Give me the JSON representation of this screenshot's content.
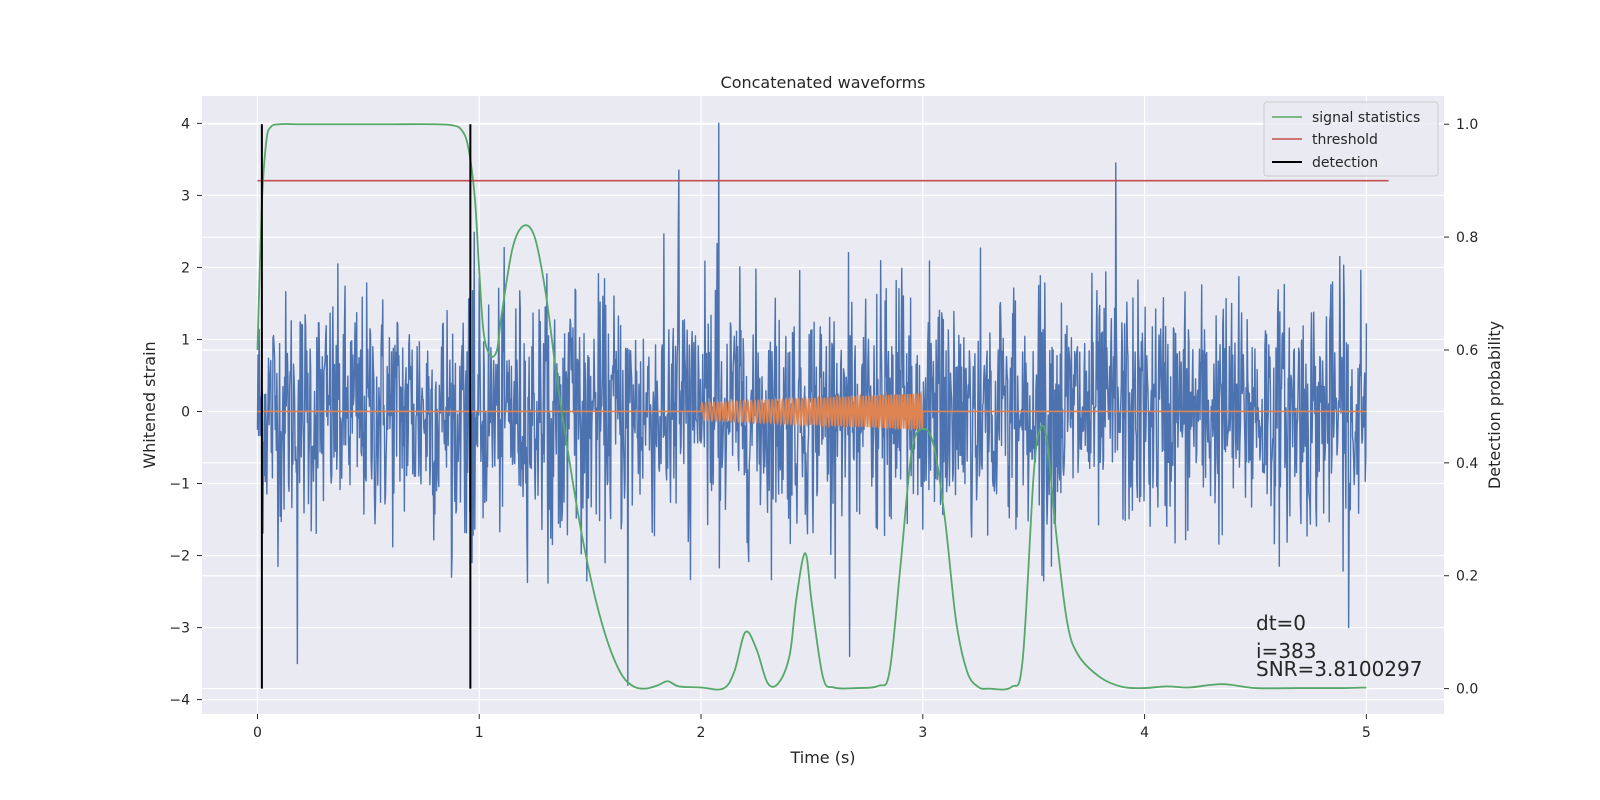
{
  "chart_data": {
    "type": "line",
    "title": "Concatenated waveforms",
    "xlabel": "Time (s)",
    "ylabel": "Whitened strain",
    "y2label": "Detection probability",
    "xlim": [
      -0.25,
      5.35
    ],
    "ylim": [
      -4.2,
      4.38
    ],
    "y2lim": [
      -0.045,
      1.05
    ],
    "xticks": [
      0,
      1,
      2,
      3,
      4,
      5
    ],
    "yticks": [
      -4,
      -3,
      -2,
      -1,
      0,
      1,
      2,
      3,
      4
    ],
    "y2ticks": [
      0.0,
      0.2,
      0.4,
      0.6,
      0.8,
      1.0
    ],
    "xtick_labels": [
      "0",
      "1",
      "2",
      "3",
      "4",
      "5"
    ],
    "ytick_labels": [
      "−4",
      "−3",
      "−2",
      "−1",
      "0",
      "1",
      "2",
      "3",
      "4"
    ],
    "y2tick_labels": [
      "0.0",
      "0.2",
      "0.4",
      "0.6",
      "0.8",
      "1.0"
    ],
    "grid": true,
    "legend_position": "top-right",
    "colors": {
      "strain": "#4c72b0",
      "waveform": "#dd8452",
      "signal_statistics": "#55a868",
      "threshold": "#c44e52",
      "detection": "#000000",
      "plot_background": "#eaeaf2",
      "grid": "#ffffff"
    },
    "series": [
      {
        "name": "signal statistics",
        "axis": "right",
        "x": [
          0.0,
          0.02,
          0.04,
          0.06,
          0.1,
          0.2,
          0.4,
          0.6,
          0.8,
          0.88,
          0.92,
          0.95,
          0.98,
          1.0,
          1.02,
          1.05,
          1.08,
          1.1,
          1.15,
          1.2,
          1.25,
          1.3,
          1.35,
          1.4,
          1.45,
          1.5,
          1.55,
          1.6,
          1.65,
          1.7,
          1.75,
          1.8,
          1.85,
          1.9,
          2.0,
          2.1,
          2.15,
          2.2,
          2.25,
          2.3,
          2.35,
          2.4,
          2.43,
          2.47,
          2.5,
          2.55,
          2.6,
          2.7,
          2.8,
          2.85,
          2.9,
          2.95,
          3.0,
          3.05,
          3.1,
          3.15,
          3.2,
          3.25,
          3.3,
          3.4,
          3.45,
          3.5,
          3.53,
          3.56,
          3.6,
          3.65,
          3.7,
          3.8,
          3.9,
          4.0,
          4.1,
          4.2,
          4.35,
          4.5,
          4.7,
          4.9,
          5.0
        ],
        "values": [
          0.6,
          0.86,
          0.97,
          0.995,
          1.0,
          1.0,
          1.0,
          1.0,
          1.0,
          0.998,
          0.99,
          0.96,
          0.87,
          0.74,
          0.63,
          0.59,
          0.6,
          0.66,
          0.78,
          0.82,
          0.8,
          0.7,
          0.55,
          0.42,
          0.3,
          0.2,
          0.12,
          0.06,
          0.02,
          0.003,
          0.0,
          0.005,
          0.013,
          0.004,
          0.002,
          0.0,
          0.03,
          0.1,
          0.07,
          0.01,
          0.01,
          0.06,
          0.16,
          0.24,
          0.15,
          0.02,
          0.002,
          0.001,
          0.005,
          0.03,
          0.22,
          0.42,
          0.46,
          0.43,
          0.3,
          0.12,
          0.03,
          0.003,
          0.0,
          0.003,
          0.05,
          0.38,
          0.46,
          0.44,
          0.28,
          0.12,
          0.06,
          0.02,
          0.003,
          0.001,
          0.004,
          0.002,
          0.008,
          0.001,
          0.001,
          0.001,
          0.002
        ]
      },
      {
        "name": "threshold",
        "axis": "right",
        "x": [
          0.0,
          5.1
        ],
        "values": [
          0.9,
          0.9
        ]
      },
      {
        "name": "detection",
        "axis": "right",
        "type": "vertical_lines",
        "x": [
          0.02,
          0.96
        ],
        "range": [
          0.0,
          1.0
        ]
      },
      {
        "axis": "left",
        "type": "noise",
        "x": [
          0.0,
          5.0
        ],
        "typical_range": [
          -2.4,
          2.5
        ],
        "spikes": [
          {
            "x": 0.18,
            "value": -3.5
          },
          {
            "x": 1.67,
            "value": -3.8
          },
          {
            "x": 1.9,
            "value": 3.35
          },
          {
            "x": 2.08,
            "value": 4.0
          },
          {
            "x": 2.67,
            "value": -3.4
          },
          {
            "x": 3.87,
            "value": 3.45
          },
          {
            "x": 4.92,
            "value": -3.0
          }
        ]
      },
      {
        "axis": "left",
        "type": "chirp",
        "x": [
          0.0,
          5.0
        ],
        "chirp_x": [
          2.0,
          3.0
        ],
        "chirp_amplitude": [
          0.12,
          0.25
        ]
      }
    ],
    "annotations": [
      "dt=0",
      "i=383",
      "SNR=3.8100297"
    ]
  }
}
